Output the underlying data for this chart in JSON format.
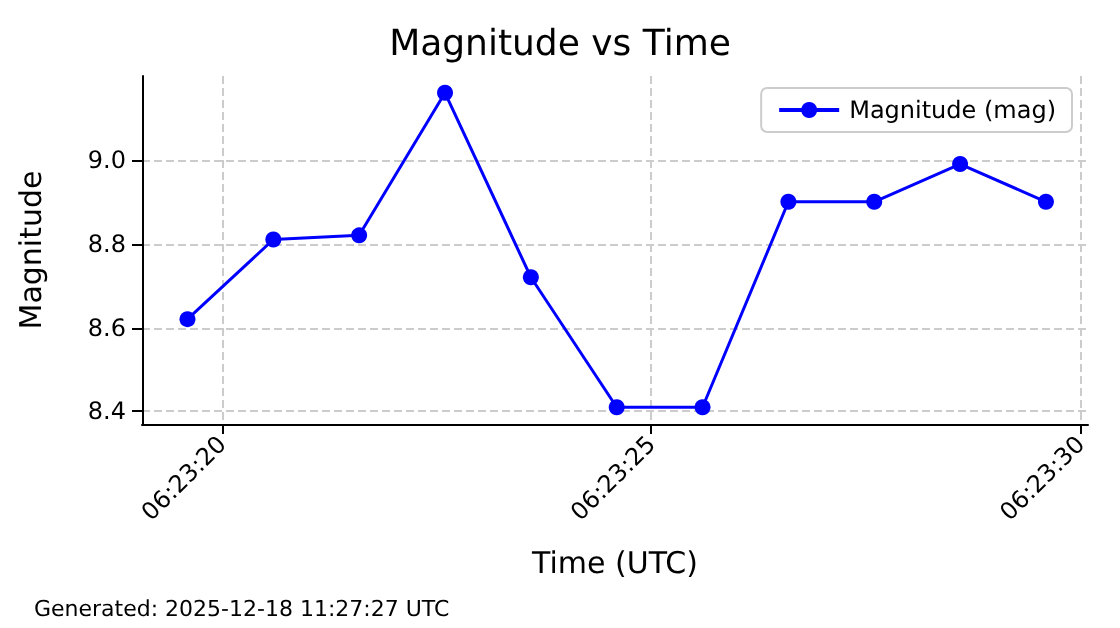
{
  "chart_data": {
    "type": "line",
    "title": "Magnitude vs Time",
    "xlabel": "Time (UTC)",
    "ylabel": "Magnitude",
    "x": [
      6.3887778,
      6.3890556,
      6.3893333,
      6.3896111,
      6.3898889,
      6.3901667,
      6.3904444,
      6.3907222,
      6.391,
      6.3912778,
      6.3915556
    ],
    "series": [
      {
        "name": "Magnitude (mag)",
        "color": "#0000ff",
        "values": [
          8.62,
          8.81,
          8.82,
          9.16,
          8.72,
          8.41,
          8.41,
          8.9,
          8.9,
          8.99,
          8.9
        ]
      }
    ],
    "xlim": [
      6.3886306,
      6.3916917
    ],
    "xticks": [
      {
        "value": 6.3888889,
        "label": "06:23:20"
      },
      {
        "value": 6.3902778,
        "label": "06:23:25"
      },
      {
        "value": 6.3916667,
        "label": "06:23:30"
      }
    ],
    "ylim": [
      8.37,
      9.2
    ],
    "yticks": [
      8.4,
      8.6,
      8.8,
      {
        "value": 9,
        "label": "9.0"
      }
    ],
    "grid": true,
    "legend": "top right",
    "marker": "circle",
    "line_style": "solid",
    "annotations": [
      "Generated: 2025-12-18 11:27:27 UTC"
    ]
  }
}
